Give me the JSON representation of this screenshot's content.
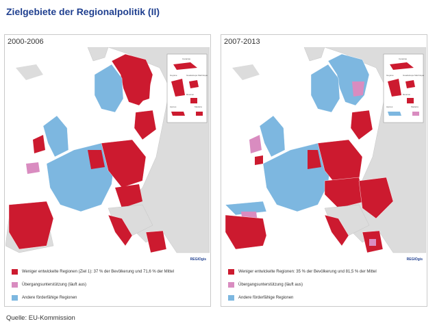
{
  "title": "Zielgebiete der Regionalpolitik (II)",
  "source": "Quelle: EU-Kommission",
  "colors": {
    "conv": "#cc1a2f",
    "trans": "#d98cc0",
    "other": "#7db7e0",
    "nonEU": "#dcdcdc",
    "sea": "#ffffff",
    "white": "#fbf6dc"
  },
  "panels": [
    {
      "period": "2000-2006",
      "logo": "REGIOgis",
      "legend": [
        {
          "color": "#cc1a2f",
          "text": "Weniger entwickelte Regionen (Ziel 1): 37 % der Bevölkerung und 71,6 % der Mittel"
        },
        {
          "color": "#d98cc0",
          "text": "Übergangsunterstützung (läuft aus)"
        },
        {
          "color": "#7db7e0",
          "text": "Andere förderfähige Regionen"
        }
      ],
      "insets": {
        "canarias": "Canarias",
        "guyane": "Guyane",
        "guadeloupe": "Guadeloupe Martinique",
        "reunion": "Réunion",
        "acores": "Açores",
        "madeira": "Madeira"
      }
    },
    {
      "period": "2007-2013",
      "logo": "REGIOgis",
      "legend": [
        {
          "color": "#cc1a2f",
          "text": "Weniger entwickelte Regionen: 35 % der Bevölkerung und 81,5 % der Mittel"
        },
        {
          "color": "#d98cc0",
          "text": "Übergangsunterstützung (läuft aus)"
        },
        {
          "color": "#7db7e0",
          "text": "Andere förderfähige Regionen"
        }
      ],
      "insets": {
        "canarias": "Canarias",
        "guyane": "Guyane",
        "guadeloupe": "Guadeloupe Martinique",
        "reunion": "Réunion",
        "acores": "Açores",
        "madeira": "Madeira"
      }
    }
  ]
}
